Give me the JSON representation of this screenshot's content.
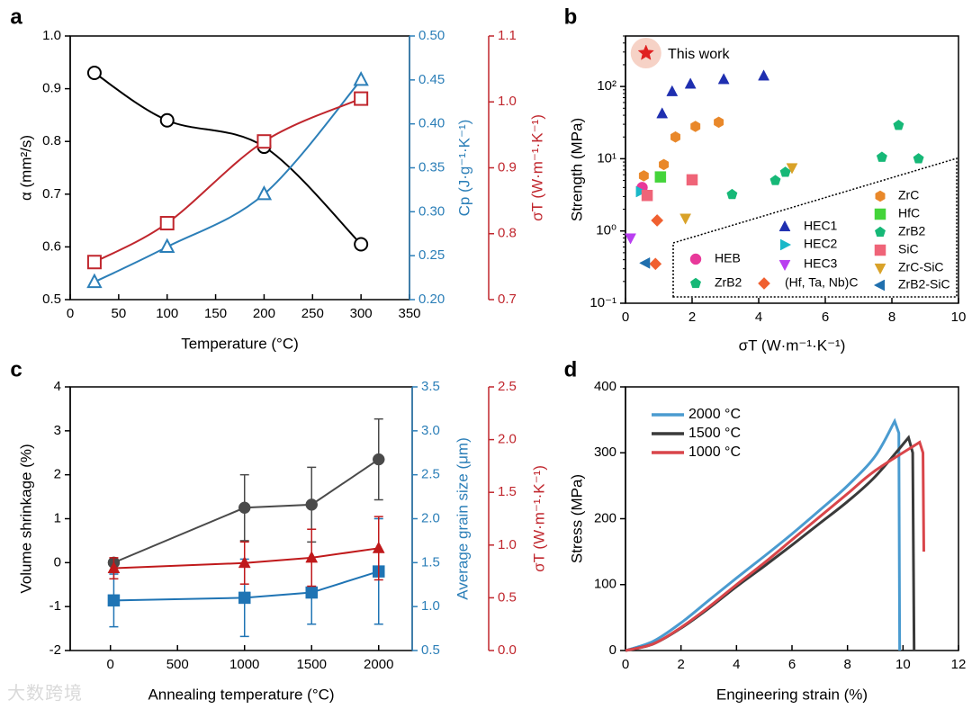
{
  "watermark": "大数跨境",
  "chart_data": [
    {
      "panel": "a",
      "type": "line",
      "xlabel": "Temperature (°C)",
      "x_ticks": [
        "0",
        "50",
        "100",
        "150",
        "200",
        "250",
        "300",
        "350"
      ],
      "xlim": [
        0,
        350
      ],
      "axes": [
        {
          "label": "α (mm²/s)",
          "side": "left",
          "color": "#000000",
          "ylim": [
            0.5,
            1.0
          ],
          "ticks": [
            "0.5",
            "0.6",
            "0.7",
            "0.8",
            "0.9",
            "1.0"
          ]
        },
        {
          "label": "Cp (J·g⁻¹·K⁻¹)",
          "side": "right",
          "color": "#2c7fb8",
          "ylim": [
            0.2,
            0.5
          ],
          "ticks": [
            "0.20",
            "0.25",
            "0.30",
            "0.35",
            "0.40",
            "0.45",
            "0.50"
          ]
        },
        {
          "label": "σT (W·m⁻¹·K⁻¹)",
          "side": "right",
          "color": "#c0262d",
          "ylim": [
            0.7,
            1.1
          ],
          "ticks": [
            "0.7",
            "0.8",
            "0.9",
            "1.0",
            "1.1"
          ]
        }
      ],
      "series": [
        {
          "axis": 0,
          "marker": "circle",
          "color": "#000000",
          "x": [
            25,
            100,
            200,
            300
          ],
          "y": [
            0.93,
            0.84,
            0.79,
            0.605
          ]
        },
        {
          "axis": 1,
          "marker": "triangle",
          "color": "#2c7fb8",
          "x": [
            25,
            100,
            200,
            300
          ],
          "y": [
            0.22,
            0.26,
            0.32,
            0.45
          ]
        },
        {
          "axis": 2,
          "marker": "square",
          "color": "#c0262d",
          "x": [
            25,
            100,
            200,
            300
          ],
          "y": [
            0.757,
            0.816,
            0.94,
            1.005
          ]
        }
      ]
    },
    {
      "panel": "b",
      "type": "scatter",
      "xlabel": "σT (W·m⁻¹·K⁻¹)",
      "ylabel": "Strength (MPa)",
      "xlim": [
        0,
        10
      ],
      "ylim": [
        0.1,
        500
      ],
      "y_scale": "log",
      "x_ticks": [
        "0",
        "2",
        "4",
        "6",
        "8",
        "10"
      ],
      "y_ticks": [
        "10⁻¹",
        "10⁰",
        "10¹",
        "10²"
      ],
      "highlight": {
        "label": "This work",
        "x": 0.75,
        "y": 290,
        "color": "#e02020"
      },
      "groups": [
        {
          "name": "HEB",
          "marker": "circle",
          "color": "#e8399a",
          "points": [
            [
              0.5,
              4.0
            ]
          ]
        },
        {
          "name": "ZrB2",
          "marker": "pentagon",
          "color": "#16b877",
          "points": [
            [
              3.2,
              3.2
            ],
            [
              4.5,
              5.0
            ],
            [
              4.8,
              6.5
            ],
            [
              7.7,
              10.5
            ],
            [
              8.2,
              29
            ],
            [
              8.8,
              10.0
            ]
          ]
        },
        {
          "name": "HEC1",
          "marker": "triangle-up",
          "color": "#1f2fb0",
          "points": [
            [
              1.1,
              42
            ],
            [
              1.4,
              85
            ],
            [
              1.95,
              108
            ],
            [
              2.95,
              125
            ],
            [
              4.15,
              140
            ]
          ]
        },
        {
          "name": "HEC2",
          "marker": "triangle-right",
          "color": "#1ab8c8",
          "points": [
            [
              0.45,
              3.5
            ]
          ]
        },
        {
          "name": "HEC3",
          "marker": "triangle-down",
          "color": "#b93ef0",
          "points": [
            [
              0.15,
              0.8
            ]
          ]
        },
        {
          "name": "(Hf, Ta, Nb)C",
          "marker": "diamond",
          "color": "#f06030",
          "points": [
            [
              0.95,
              1.4
            ],
            [
              0.9,
              0.35
            ]
          ]
        },
        {
          "name": "ZrC",
          "marker": "hexagon",
          "color": "#e9882a",
          "points": [
            [
              0.55,
              5.8
            ],
            [
              1.15,
              8.3
            ],
            [
              1.5,
              20
            ],
            [
              2.1,
              28
            ],
            [
              2.8,
              32
            ]
          ]
        },
        {
          "name": "HfC",
          "marker": "square",
          "color": "#44d43a",
          "points": [
            [
              1.05,
              5.6
            ]
          ]
        },
        {
          "name": "SiC",
          "marker": "square",
          "color": "#ef6478",
          "points": [
            [
              0.65,
              3.1
            ],
            [
              2.0,
              5.1
            ]
          ]
        },
        {
          "name": "ZrC-SiC",
          "marker": "triangle-down",
          "color": "#d9a228",
          "points": [
            [
              1.8,
              1.5
            ],
            [
              5.0,
              7.5
            ]
          ]
        },
        {
          "name": "ZrB2-SiC",
          "marker": "triangle-left",
          "color": "#1f6fae",
          "points": [
            [
              0.6,
              0.36
            ]
          ]
        }
      ]
    },
    {
      "panel": "c",
      "type": "line",
      "xlabel": "Annealing temperature (°C)",
      "x_ticks": [
        "0",
        "500",
        "1000",
        "1500",
        "2000"
      ],
      "xlim": [
        -300,
        2250
      ],
      "axes": [
        {
          "label": "Volume shrinkage (%)",
          "side": "left",
          "color": "#000000",
          "ylim": [
            -2,
            4
          ],
          "ticks": [
            "-2",
            "-1",
            "0",
            "1",
            "2",
            "3",
            "4"
          ]
        },
        {
          "label": "Average grain size (μm)",
          "side": "right",
          "color": "#2c7fb8",
          "ylim": [
            0.5,
            3.5
          ],
          "ticks": [
            "0.5",
            "1.0",
            "1.5",
            "2.0",
            "2.5",
            "3.0",
            "3.5"
          ]
        },
        {
          "label": "σT (W·m⁻¹·K⁻¹)",
          "side": "right",
          "color": "#c0262d",
          "ylim": [
            0.0,
            2.5
          ],
          "ticks": [
            "0.0",
            "0.5",
            "1.0",
            "1.5",
            "2.0",
            "2.5"
          ]
        }
      ],
      "series": [
        {
          "axis": 0,
          "marker": "circle",
          "color": "#4a4a4a",
          "x": [
            25,
            1000,
            1500,
            2000
          ],
          "y": [
            0.0,
            1.25,
            1.32,
            2.35
          ],
          "err": [
            0.0,
            0.75,
            0.85,
            0.92
          ]
        },
        {
          "axis": 1,
          "marker": "square",
          "color": "#1f74b4",
          "x": [
            25,
            1000,
            1500,
            2000
          ],
          "y": [
            1.07,
            1.1,
            1.16,
            1.4
          ],
          "err": [
            0.3,
            0.44,
            0.36,
            0.6
          ]
        },
        {
          "axis": 2,
          "marker": "triangle",
          "color": "#c0191b",
          "x": [
            25,
            1000,
            1500,
            2000
          ],
          "y": [
            0.78,
            0.83,
            0.88,
            0.97
          ],
          "err": [
            0.1,
            0.2,
            0.27,
            0.3
          ]
        }
      ]
    },
    {
      "panel": "d",
      "type": "line",
      "xlabel": "Engineering strain (%)",
      "ylabel": "Stress (MPa)",
      "xlim": [
        0,
        12
      ],
      "ylim": [
        0,
        400
      ],
      "x_ticks": [
        "0",
        "2",
        "4",
        "6",
        "8",
        "10",
        "12"
      ],
      "y_ticks": [
        "0",
        "100",
        "200",
        "300",
        "400"
      ],
      "series": [
        {
          "name": "2000 °C",
          "color": "#4a9bd0",
          "x": [
            0,
            1,
            2,
            3,
            4,
            5,
            6,
            7,
            8,
            9,
            9.7,
            9.85,
            9.88
          ],
          "y": [
            0,
            14,
            42,
            76,
            110,
            143,
            177,
            213,
            250,
            295,
            348,
            330,
            0
          ]
        },
        {
          "name": "1500 °C",
          "color": "#3a3a3a",
          "x": [
            0,
            1,
            2,
            3,
            4,
            5,
            6,
            7,
            8,
            9,
            10.2,
            10.35,
            10.4
          ],
          "y": [
            0,
            10,
            34,
            64,
            97,
            128,
            160,
            193,
            226,
            264,
            323,
            300,
            0
          ]
        },
        {
          "name": "1000 °C",
          "color": "#d9454a",
          "x": [
            0,
            1,
            2,
            3,
            4,
            5,
            6,
            7,
            8,
            9,
            10.6,
            10.72,
            10.75
          ],
          "y": [
            0,
            10,
            35,
            66,
            100,
            133,
            168,
            203,
            238,
            273,
            316,
            300,
            150
          ]
        }
      ]
    }
  ],
  "panel_labels": [
    "a",
    "b",
    "c",
    "d"
  ]
}
